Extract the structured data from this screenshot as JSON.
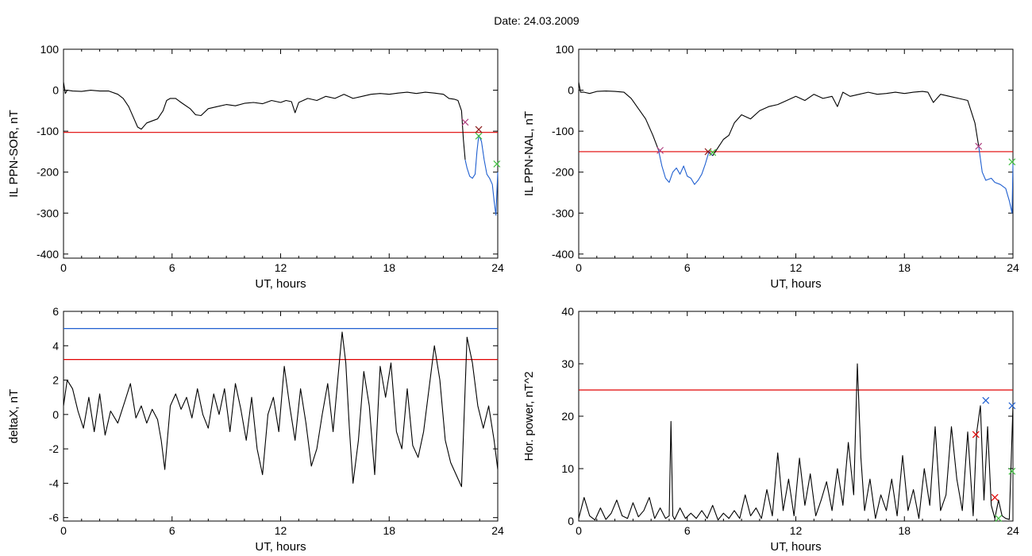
{
  "page_title": "Date:  24.03.2009",
  "chart_data": [
    {
      "type": "line",
      "xlabel": "UT, hours",
      "ylabel": "IL PPN-SOR, nT",
      "xlim": [
        0,
        24
      ],
      "ylim": [
        -410,
        100
      ],
      "xticks": [
        0,
        6,
        12,
        18,
        24
      ],
      "yticks": [
        100,
        0,
        -100,
        -200,
        -300,
        -400
      ],
      "xtick_labels": [
        "0",
        "6",
        "12",
        "18",
        "24"
      ],
      "ytick_labels": [
        "100",
        "0",
        "-100",
        "-200",
        "-300",
        "-400"
      ],
      "series": [
        {
          "color": "#000000",
          "x": [
            0,
            0.1,
            0.2,
            0.5,
            1,
            1.5,
            2,
            2.5,
            3,
            3.3,
            3.6,
            3.9,
            4.1,
            4.3,
            4.6,
            4.9,
            5.2,
            5.5,
            5.7,
            5.9,
            6.2,
            6.5,
            7,
            7.3,
            7.6,
            8,
            8.5,
            9,
            9.5,
            10,
            10.5,
            11,
            11.5,
            12,
            12.3,
            12.6,
            12.8,
            13,
            13.5,
            14,
            14.5,
            15,
            15.5,
            16,
            16.5,
            17,
            17.5,
            18,
            18.5,
            19,
            19.5,
            20,
            20.5,
            21,
            21.3,
            21.6,
            21.8,
            22.0,
            22.1,
            22.2
          ],
          "y": [
            20,
            -8,
            0,
            -2,
            -3,
            0,
            -2,
            -2,
            -10,
            -20,
            -40,
            -70,
            -90,
            -95,
            -80,
            -75,
            -70,
            -50,
            -25,
            -20,
            -20,
            -30,
            -45,
            -60,
            -62,
            -45,
            -40,
            -35,
            -38,
            -32,
            -30,
            -33,
            -25,
            -30,
            -25,
            -28,
            -55,
            -30,
            -20,
            -25,
            -15,
            -20,
            -10,
            -20,
            -15,
            -10,
            -8,
            -10,
            -7,
            -5,
            -8,
            -5,
            -7,
            -10,
            -20,
            -22,
            -25,
            -50,
            -120,
            -170
          ]
        },
        {
          "color": "#1f5fd0",
          "x": [
            22.2,
            22.3,
            22.45,
            22.6,
            22.75,
            22.85,
            22.95,
            23.1,
            23.25,
            23.4,
            23.55,
            23.7,
            23.8,
            23.9,
            24.0
          ],
          "y": [
            -170,
            -190,
            -210,
            -215,
            -205,
            -150,
            -110,
            -125,
            -170,
            -205,
            -215,
            -230,
            -270,
            -305,
            -200
          ]
        }
      ],
      "hlines": [
        {
          "y": -103,
          "color": "#e00000"
        }
      ],
      "markers": [
        {
          "x": 22.2,
          "y": -78,
          "color": "#b04080"
        },
        {
          "x": 22.95,
          "y": -96,
          "color": "#8b1a1a"
        },
        {
          "x": 22.95,
          "y": -112,
          "color": "#40c040"
        },
        {
          "x": 23.95,
          "y": -180,
          "color": "#40c040"
        }
      ]
    },
    {
      "type": "line",
      "xlabel": "UT, hours",
      "ylabel": "IL PPN-NAL, nT",
      "xlim": [
        0,
        24
      ],
      "ylim": [
        -410,
        100
      ],
      "xticks": [
        0,
        6,
        12,
        18,
        24
      ],
      "yticks": [
        100,
        0,
        -100,
        -200,
        -300,
        -400
      ],
      "xtick_labels": [
        "0",
        "6",
        "12",
        "18",
        "24"
      ],
      "ytick_labels": [
        "100",
        "0",
        "-100",
        "-200",
        "-300",
        "-400"
      ],
      "series": [
        {
          "color": "#000000",
          "x": [
            0,
            0.1,
            0.3,
            0.6,
            1,
            1.5,
            2,
            2.5,
            2.9,
            3.3,
            3.7,
            4.1,
            4.4
          ],
          "y": [
            20,
            -5,
            -5,
            -8,
            -3,
            -2,
            -3,
            -5,
            -20,
            -45,
            -70,
            -110,
            -145
          ]
        },
        {
          "color": "#1f5fd0",
          "x": [
            4.4,
            4.6,
            4.8,
            5.0,
            5.2,
            5.4,
            5.6,
            5.8,
            6.0,
            6.2,
            6.4,
            6.6,
            6.8,
            7.0,
            7.2,
            7.4
          ],
          "y": [
            -145,
            -185,
            -215,
            -225,
            -200,
            -190,
            -205,
            -185,
            -210,
            -215,
            -230,
            -220,
            -205,
            -180,
            -150,
            -160
          ]
        },
        {
          "color": "#000000",
          "x": [
            7.4,
            7.7,
            8,
            8.3,
            8.6,
            9,
            9.5,
            10,
            10.5,
            11,
            11.5,
            12,
            12.5,
            13,
            13.5,
            14,
            14.3,
            14.6,
            15,
            15.5,
            16,
            16.5,
            17,
            17.5,
            18,
            18.5,
            19,
            19.3,
            19.6,
            20,
            20.5,
            21,
            21.5,
            21.9,
            22.1
          ],
          "y": [
            -160,
            -140,
            -120,
            -110,
            -80,
            -60,
            -70,
            -50,
            -40,
            -35,
            -25,
            -15,
            -25,
            -10,
            -20,
            -15,
            -40,
            -5,
            -15,
            -10,
            -5,
            -10,
            -8,
            -5,
            -8,
            -5,
            -3,
            -5,
            -30,
            -10,
            -15,
            -20,
            -25,
            -80,
            -135
          ]
        },
        {
          "color": "#1f5fd0",
          "x": [
            22.1,
            22.3,
            22.5,
            22.8,
            23.0,
            23.3,
            23.6,
            23.8,
            23.95,
            24.0
          ],
          "y": [
            -135,
            -200,
            -220,
            -215,
            -225,
            -230,
            -240,
            -270,
            -300,
            -180
          ]
        }
      ],
      "hlines": [
        {
          "y": -150,
          "color": "#e00000"
        }
      ],
      "markers": [
        {
          "x": 4.5,
          "y": -147,
          "color": "#b04080"
        },
        {
          "x": 7.15,
          "y": -150,
          "color": "#8b1a1a"
        },
        {
          "x": 7.4,
          "y": -152,
          "color": "#40c040"
        },
        {
          "x": 22.1,
          "y": -137,
          "color": "#b04080"
        },
        {
          "x": 23.95,
          "y": -175,
          "color": "#40c040"
        }
      ]
    },
    {
      "type": "line",
      "xlabel": "UT, hours",
      "ylabel": "deltaX, nT",
      "xlim": [
        0,
        24
      ],
      "ylim": [
        -6.2,
        6
      ],
      "xticks": [
        0,
        6,
        12,
        18,
        24
      ],
      "yticks": [
        6,
        4,
        2,
        0,
        -2,
        -4,
        -6
      ],
      "xtick_labels": [
        "0",
        "6",
        "12",
        "18",
        "24"
      ],
      "ytick_labels": [
        "6",
        "4",
        "2",
        "0",
        "-2",
        "-4",
        "-6"
      ],
      "series": [
        {
          "color": "#000000",
          "x": [
            0,
            0.2,
            0.5,
            0.8,
            1.1,
            1.4,
            1.7,
            2.0,
            2.3,
            2.6,
            3.0,
            3.4,
            3.7,
            4.0,
            4.3,
            4.6,
            4.9,
            5.2,
            5.4,
            5.6,
            5.9,
            6.2,
            6.5,
            6.8,
            7.1,
            7.4,
            7.7,
            8.0,
            8.3,
            8.6,
            8.9,
            9.2,
            9.5,
            9.8,
            10.1,
            10.4,
            10.7,
            11.0,
            11.3,
            11.6,
            11.9,
            12.2,
            12.5,
            12.8,
            13.1,
            13.4,
            13.7,
            14.0,
            14.3,
            14.6,
            14.9,
            15.2,
            15.4,
            15.6,
            15.8,
            16.0,
            16.3,
            16.6,
            16.9,
            17.2,
            17.5,
            17.8,
            18.1,
            18.4,
            18.7,
            19.0,
            19.3,
            19.6,
            19.9,
            20.2,
            20.5,
            20.8,
            21.1,
            21.4,
            21.7,
            22.0,
            22.3,
            22.6,
            22.9,
            23.2,
            23.5,
            23.8,
            24.0
          ],
          "y": [
            0.5,
            2.0,
            1.5,
            0.2,
            -0.8,
            1.0,
            -1.0,
            1.2,
            -1.2,
            0.2,
            -0.5,
            0.8,
            1.8,
            -0.2,
            0.5,
            -0.5,
            0.3,
            -0.3,
            -1.5,
            -3.2,
            0.5,
            1.2,
            0.3,
            1.0,
            -0.2,
            1.5,
            0.0,
            -0.8,
            1.2,
            0.0,
            1.5,
            -1.0,
            1.8,
            0.3,
            -1.5,
            1.0,
            -2.0,
            -3.5,
            0.0,
            1.0,
            -1.0,
            2.8,
            0.5,
            -1.5,
            1.5,
            -0.5,
            -3.0,
            -2.0,
            0.0,
            1.8,
            -1.0,
            2.5,
            4.8,
            3.0,
            -0.8,
            -4.0,
            -1.5,
            2.5,
            0.5,
            -3.5,
            2.8,
            1.0,
            3.0,
            -1.0,
            -2.0,
            1.5,
            -1.8,
            -2.5,
            -1.0,
            1.5,
            4.0,
            2.0,
            -1.5,
            -2.8,
            -3.5,
            -4.2,
            4.5,
            3.0,
            0.5,
            -0.8,
            0.5,
            -1.5,
            -3.2
          ]
        }
      ],
      "hlines": [
        {
          "y": 5.0,
          "color": "#1f5fd0"
        },
        {
          "y": 3.2,
          "color": "#e00000"
        }
      ],
      "markers": []
    },
    {
      "type": "line",
      "xlabel": "UT, hours",
      "ylabel": "Hor. power, nT^2",
      "xlim": [
        0,
        24
      ],
      "ylim": [
        0,
        40
      ],
      "xticks": [
        0,
        6,
        12,
        18,
        24
      ],
      "yticks": [
        40,
        30,
        20,
        10,
        0
      ],
      "xtick_labels": [
        "0",
        "6",
        "12",
        "18",
        "24"
      ],
      "ytick_labels": [
        "40",
        "30",
        "20",
        "10",
        "0"
      ],
      "series": [
        {
          "color": "#000000",
          "x": [
            0,
            0.3,
            0.6,
            0.9,
            1.2,
            1.5,
            1.8,
            2.1,
            2.4,
            2.7,
            3.0,
            3.3,
            3.6,
            3.9,
            4.2,
            4.5,
            4.8,
            5.0,
            5.1,
            5.2,
            5.3,
            5.6,
            5.9,
            6.2,
            6.5,
            6.8,
            7.1,
            7.4,
            7.7,
            8.0,
            8.3,
            8.6,
            8.9,
            9.2,
            9.5,
            9.8,
            10.1,
            10.4,
            10.7,
            11.0,
            11.3,
            11.6,
            11.9,
            12.2,
            12.5,
            12.8,
            13.1,
            13.4,
            13.7,
            14.0,
            14.3,
            14.6,
            14.9,
            15.2,
            15.4,
            15.6,
            15.8,
            16.1,
            16.4,
            16.7,
            17.0,
            17.3,
            17.6,
            17.9,
            18.2,
            18.5,
            18.8,
            19.1,
            19.4,
            19.7,
            20.0,
            20.3,
            20.6,
            20.9,
            21.2,
            21.5,
            21.8,
            22.0,
            22.2,
            22.4,
            22.6,
            22.8,
            23.0,
            23.2,
            23.4,
            23.6,
            23.8,
            24.0
          ],
          "y": [
            0.5,
            4.5,
            1.0,
            0.2,
            2.5,
            0.3,
            1.5,
            4.0,
            1.0,
            0.5,
            3.5,
            0.8,
            2.0,
            4.5,
            0.5,
            2.5,
            0.5,
            1.0,
            19.0,
            1.0,
            0.3,
            2.5,
            0.5,
            1.5,
            0.5,
            2.0,
            0.5,
            3.0,
            0.2,
            1.5,
            0.5,
            2.0,
            0.5,
            5.0,
            1.0,
            2.5,
            0.5,
            6.0,
            1.0,
            13.0,
            2.0,
            8.0,
            1.0,
            12.0,
            3.0,
            9.0,
            1.0,
            4.0,
            7.5,
            2.0,
            10.0,
            3.0,
            15.0,
            5.0,
            30.0,
            12.0,
            2.0,
            8.0,
            0.5,
            5.0,
            2.0,
            8.0,
            1.0,
            12.5,
            2.0,
            6.0,
            0.5,
            10.0,
            3.0,
            18.0,
            2.0,
            5.0,
            18.0,
            8.0,
            2.0,
            17.0,
            1.0,
            17.0,
            22.0,
            4.0,
            18.0,
            3.0,
            0.5,
            4.0,
            1.0,
            0.5,
            0.3,
            22.0
          ]
        }
      ],
      "hlines": [
        {
          "y": 25,
          "color": "#e00000"
        }
      ],
      "markers": [
        {
          "x": 21.95,
          "y": 16.5,
          "color": "#e00000"
        },
        {
          "x": 22.5,
          "y": 23.0,
          "color": "#1f5fd0"
        },
        {
          "x": 23.0,
          "y": 4.5,
          "color": "#e00000"
        },
        {
          "x": 23.2,
          "y": 0.5,
          "color": "#40c040"
        },
        {
          "x": 23.95,
          "y": 22.0,
          "color": "#1f5fd0"
        },
        {
          "x": 23.95,
          "y": 9.5,
          "color": "#40c040"
        }
      ]
    }
  ]
}
